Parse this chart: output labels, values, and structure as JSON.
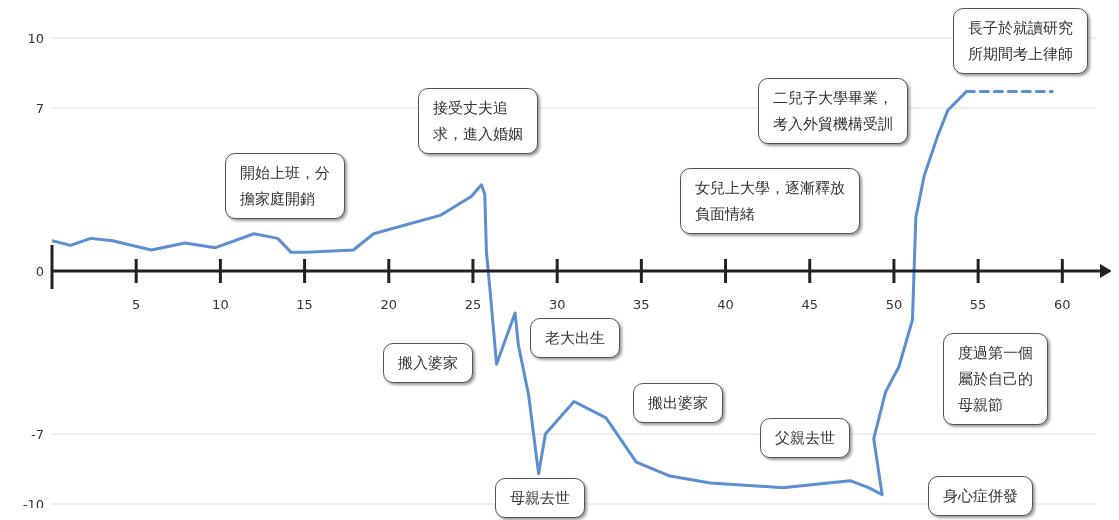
{
  "chart_data": {
    "type": "line",
    "xlim": [
      0,
      62
    ],
    "xticks": [
      5,
      10,
      15,
      20,
      25,
      30,
      35,
      40,
      45,
      50,
      55,
      60
    ],
    "ylim": [
      -10,
      10
    ],
    "yticks": [
      10,
      7,
      0,
      -7,
      -10
    ],
    "grid": "y",
    "series": [
      {
        "color": "#5b8fd0",
        "line_style": "solid",
        "x": [
          0,
          1.1,
          2.3,
          3.6,
          5.9,
          7.9,
          9.7,
          12.0,
          13.4,
          14.2,
          15.1,
          17.9,
          19.1,
          23.1,
          24.9,
          25.5,
          25.7,
          25.8,
          26.0,
          26.4,
          27.5,
          27.7,
          28.3,
          28.9,
          29.3,
          31.0,
          32.9,
          34.7,
          36.7,
          39.1,
          43.4,
          47.4,
          48.5,
          49.3,
          48.8,
          49.5,
          50.3,
          51.1,
          51.3,
          51.8,
          52.6,
          53.2,
          54.3
        ],
        "values": [
          1.3,
          1.1,
          1.4,
          1.3,
          0.9,
          1.2,
          1.0,
          1.6,
          1.4,
          0.8,
          0.8,
          0.9,
          1.6,
          2.4,
          3.2,
          3.7,
          3.3,
          0.8,
          -0.7,
          -4.0,
          -1.8,
          -3.2,
          -5.3,
          -8.7,
          -7.0,
          -5.6,
          -6.3,
          -8.2,
          -8.8,
          -9.1,
          -9.3,
          -9.0,
          -9.3,
          -9.6,
          -7.2,
          -5.2,
          -4.1,
          -2.1,
          2.3,
          4.1,
          5.8,
          6.9,
          7.7
        ]
      },
      {
        "color": "#5b8fd0",
        "line_style": "dashed",
        "x": [
          54.3,
          59.4
        ],
        "values": [
          7.7,
          7.7
        ]
      }
    ],
    "annotations": [
      "開始上班，分擔家庭開銷",
      "接受丈夫追求，進入婚姻",
      "女兒上大學，逐漸釋放負面情緒",
      "二兒子大學畢業，考入外貿機構受訓",
      "長子於就讀研究所期間考上律師",
      "搬入婆家",
      "老大出生",
      "搬出婆家",
      "母親去世",
      "父親去世",
      "度過第一個屬於自己的母親節",
      "身心症併發"
    ]
  }
}
